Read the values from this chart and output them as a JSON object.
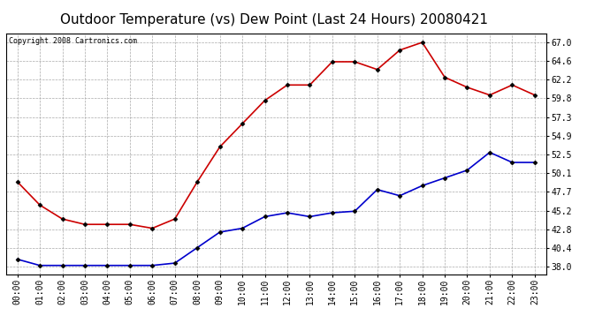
{
  "title": "Outdoor Temperature (vs) Dew Point (Last 24 Hours) 20080421",
  "copyright": "Copyright 2008 Cartronics.com",
  "hours": [
    "00:00",
    "01:00",
    "02:00",
    "03:00",
    "04:00",
    "05:00",
    "06:00",
    "07:00",
    "08:00",
    "09:00",
    "10:00",
    "11:00",
    "12:00",
    "13:00",
    "14:00",
    "15:00",
    "16:00",
    "17:00",
    "18:00",
    "19:00",
    "20:00",
    "21:00",
    "22:00",
    "23:00"
  ],
  "temp": [
    49.0,
    46.0,
    44.2,
    43.5,
    43.5,
    43.5,
    43.0,
    44.2,
    49.0,
    53.5,
    56.5,
    59.5,
    61.5,
    61.5,
    64.5,
    64.5,
    63.5,
    66.0,
    67.0,
    62.5,
    61.2,
    60.2,
    61.5,
    60.2
  ],
  "dew": [
    39.0,
    38.2,
    38.2,
    38.2,
    38.2,
    38.2,
    38.2,
    38.5,
    40.5,
    42.5,
    43.0,
    44.5,
    45.0,
    44.5,
    45.0,
    45.2,
    48.0,
    47.2,
    48.5,
    49.5,
    50.5,
    52.8,
    51.5,
    51.5
  ],
  "temp_color": "#cc0000",
  "dew_color": "#0000cc",
  "marker": "D",
  "marker_size": 2.5,
  "marker_color": "#000000",
  "line_width": 1.2,
  "bg_color": "#ffffff",
  "plot_bg_color": "#ffffff",
  "grid_color": "#aaaaaa",
  "yticks": [
    38.0,
    40.4,
    42.8,
    45.2,
    47.7,
    50.1,
    52.5,
    54.9,
    57.3,
    59.8,
    62.2,
    64.6,
    67.0
  ],
  "ylim": [
    37.0,
    68.2
  ],
  "title_fontsize": 11,
  "copyright_fontsize": 6,
  "tick_fontsize": 7
}
